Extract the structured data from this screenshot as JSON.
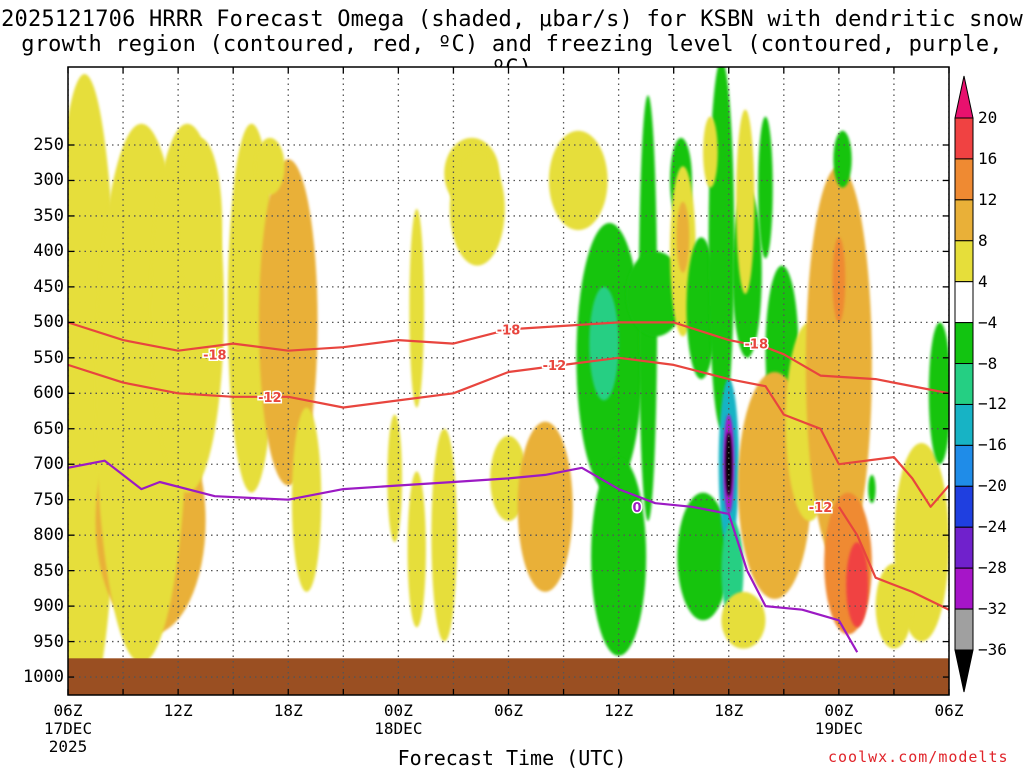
{
  "title_line1": "2025121706 HRRR Forecast Omega (shaded, μbar/s) for KSBN with dendritic snow",
  "title_line2": "growth region (contoured, red, ºC) and freezing level (contoured, purple, ºC)",
  "x_axis_label": "Forecast Time (UTC)",
  "credit": "coolwx.com/modelts",
  "chart_data": {
    "type": "heatmap",
    "x_ticks": [
      {
        "h": 0,
        "label": "06Z",
        "sub1": "17DEC",
        "sub2": "2025"
      },
      {
        "h": 6,
        "label": "12Z",
        "sub1": "",
        "sub2": ""
      },
      {
        "h": 12,
        "label": "18Z",
        "sub1": "",
        "sub2": ""
      },
      {
        "h": 18,
        "label": "00Z",
        "sub1": "18DEC",
        "sub2": ""
      },
      {
        "h": 24,
        "label": "06Z",
        "sub1": "",
        "sub2": ""
      },
      {
        "h": 30,
        "label": "12Z",
        "sub1": "",
        "sub2": ""
      },
      {
        "h": 36,
        "label": "18Z",
        "sub1": "",
        "sub2": ""
      },
      {
        "h": 42,
        "label": "00Z",
        "sub1": "19DEC",
        "sub2": ""
      },
      {
        "h": 48,
        "label": "06Z",
        "sub1": "",
        "sub2": ""
      }
    ],
    "y_ticks": [
      {
        "p": 250,
        "label": "250"
      },
      {
        "p": 300,
        "label": "300"
      },
      {
        "p": 350,
        "label": "350"
      },
      {
        "p": 400,
        "label": "400"
      },
      {
        "p": 450,
        "label": "450"
      },
      {
        "p": 500,
        "label": "500"
      },
      {
        "p": 550,
        "label": "550"
      },
      {
        "p": 600,
        "label": "600"
      },
      {
        "p": 650,
        "label": "650"
      },
      {
        "p": 700,
        "label": "700"
      },
      {
        "p": 750,
        "label": "750"
      },
      {
        "p": 800,
        "label": "800"
      },
      {
        "p": 850,
        "label": "850"
      },
      {
        "p": 900,
        "label": "900"
      },
      {
        "p": 950,
        "label": "950"
      },
      {
        "p": 1000,
        "label": "1000"
      }
    ],
    "x_range_hours": [
      0,
      48
    ],
    "y_range_hPa": [
      1050,
      200
    ],
    "colorbar": {
      "labels": [
        "20",
        "16",
        "12",
        "8",
        "4",
        "−4",
        "−8",
        "−12",
        "−16",
        "−20",
        "−24",
        "−28",
        "−32",
        "−36"
      ],
      "colors": [
        "#e8116e",
        "#f04242",
        "#ef8a32",
        "#e9b038",
        "#e6de3a",
        "#ffffff",
        "#12c411",
        "#25cf83",
        "#17b3c5",
        "#1f8ce8",
        "#1f3fe0",
        "#7021cc",
        "#a615c8",
        "#a0a0a0",
        "#000000"
      ]
    },
    "omega_features": [
      {
        "h": 0.7,
        "p": 700,
        "rh": 0.8,
        "rp": 270,
        "v": 14
      },
      {
        "h": 0.9,
        "p": 600,
        "rh": 1.8,
        "rp": 450,
        "v": 6
      },
      {
        "h": 4.5,
        "p": 780,
        "rh": 3.0,
        "rp": 160,
        "v": 8
      },
      {
        "h": 4.0,
        "p": 600,
        "rh": 2.5,
        "rp": 380,
        "v": 5
      },
      {
        "h": 6.5,
        "p": 480,
        "rh": 2.0,
        "rp": 260,
        "v": 5
      },
      {
        "h": 7.2,
        "p": 360,
        "rh": 1.2,
        "rp": 120,
        "v": 5
      },
      {
        "h": 10.0,
        "p": 480,
        "rh": 1.3,
        "rp": 260,
        "v": 5
      },
      {
        "h": 12.0,
        "p": 500,
        "rh": 1.6,
        "rp": 230,
        "v": 9
      },
      {
        "h": 11.0,
        "p": 280,
        "rh": 0.8,
        "rp": 40,
        "v": 5
      },
      {
        "h": 13.0,
        "p": 750,
        "rh": 0.8,
        "rp": 130,
        "v": 5
      },
      {
        "h": 17.8,
        "p": 720,
        "rh": 0.4,
        "rp": 90,
        "v": 5
      },
      {
        "h": 19.0,
        "p": 480,
        "rh": 0.4,
        "rp": 140,
        "v": 5
      },
      {
        "h": 19.0,
        "p": 820,
        "rh": 0.5,
        "rp": 110,
        "v": 5
      },
      {
        "h": 20.5,
        "p": 800,
        "rh": 0.7,
        "rp": 150,
        "v": 5
      },
      {
        "h": 22.0,
        "p": 290,
        "rh": 1.5,
        "rp": 50,
        "v": 5
      },
      {
        "h": 24.0,
        "p": 720,
        "rh": 1.0,
        "rp": 60,
        "v": 5
      },
      {
        "h": 26.0,
        "p": 760,
        "rh": 1.5,
        "rp": 120,
        "v": 10
      },
      {
        "h": 22.3,
        "p": 340,
        "rh": 1.5,
        "rp": 80,
        "v": 5
      },
      {
        "h": 27.8,
        "p": 300,
        "rh": 1.6,
        "rp": 70,
        "v": 5
      },
      {
        "h": 29.5,
        "p": 550,
        "rh": 1.8,
        "rp": 190,
        "v": -7
      },
      {
        "h": 29.2,
        "p": 530,
        "rh": 0.8,
        "rp": 80,
        "v": -11
      },
      {
        "h": 30.0,
        "p": 830,
        "rh": 1.5,
        "rp": 140,
        "v": -5
      },
      {
        "h": 31.6,
        "p": 480,
        "rh": 0.5,
        "rp": 300,
        "v": -6
      },
      {
        "h": 32.0,
        "p": 460,
        "rh": 1.6,
        "rp": 60,
        "v": -5
      },
      {
        "h": 33.4,
        "p": 300,
        "rh": 0.6,
        "rp": 60,
        "v": -5
      },
      {
        "h": 33.5,
        "p": 400,
        "rh": 0.7,
        "rp": 120,
        "v": 5
      },
      {
        "h": 33.5,
        "p": 380,
        "rh": 0.35,
        "rp": 50,
        "v": 10
      },
      {
        "h": 34.5,
        "p": 480,
        "rh": 0.8,
        "rp": 100,
        "v": -5
      },
      {
        "h": 35.6,
        "p": 390,
        "rh": 0.7,
        "rp": 260,
        "v": -7
      },
      {
        "h": 35.0,
        "p": 260,
        "rh": 0.4,
        "rp": 50,
        "v": 5
      },
      {
        "h": 34.6,
        "p": 830,
        "rh": 1.4,
        "rp": 90,
        "v": -6
      },
      {
        "h": 37.0,
        "p": 430,
        "rh": 0.8,
        "rp": 120,
        "v": -6
      },
      {
        "h": 36.9,
        "p": 330,
        "rh": 0.5,
        "rp": 130,
        "v": 5
      },
      {
        "h": 38.0,
        "p": 310,
        "rh": 0.4,
        "rp": 100,
        "v": -6
      },
      {
        "h": 38.9,
        "p": 540,
        "rh": 0.9,
        "rp": 120,
        "v": -6
      },
      {
        "h": 36.0,
        "p": 700,
        "rh": 0.55,
        "rp": 120,
        "v": -14
      },
      {
        "h": 36.0,
        "p": 700,
        "rh": 0.3,
        "rp": 70,
        "v": -30
      },
      {
        "h": 36.0,
        "p": 700,
        "rh": 0.18,
        "rp": 45,
        "v": -40
      },
      {
        "h": 36.2,
        "p": 850,
        "rh": 0.6,
        "rp": 70,
        "v": -8
      },
      {
        "h": 38.5,
        "p": 730,
        "rh": 2.0,
        "rp": 160,
        "v": 11
      },
      {
        "h": 36.8,
        "p": 920,
        "rh": 1.2,
        "rp": 40,
        "v": 5
      },
      {
        "h": 40.4,
        "p": 640,
        "rh": 1.3,
        "rp": 140,
        "v": 6
      },
      {
        "h": 42.0,
        "p": 560,
        "rh": 1.8,
        "rp": 280,
        "v": 8
      },
      {
        "h": 42.0,
        "p": 440,
        "rh": 0.35,
        "rp": 60,
        "v": 14
      },
      {
        "h": 42.2,
        "p": 270,
        "rh": 0.5,
        "rp": 40,
        "v": -6
      },
      {
        "h": 42.5,
        "p": 840,
        "rh": 1.3,
        "rp": 100,
        "v": 12
      },
      {
        "h": 43.0,
        "p": 870,
        "rh": 0.6,
        "rp": 60,
        "v": 17
      },
      {
        "h": 46.5,
        "p": 810,
        "rh": 1.5,
        "rp": 140,
        "v": 5
      },
      {
        "h": 47.5,
        "p": 600,
        "rh": 0.6,
        "rp": 100,
        "v": -6
      },
      {
        "h": 43.8,
        "p": 735,
        "rh": 0.2,
        "rp": 20,
        "v": -6
      },
      {
        "h": 45.0,
        "p": 900,
        "rh": 1.0,
        "rp": 60,
        "v": 5
      }
    ],
    "contours": [
      {
        "name": "dgz-minus18",
        "label": "-18",
        "color": "#e8453e",
        "points": [
          [
            0,
            500
          ],
          [
            3,
            525
          ],
          [
            6,
            540
          ],
          [
            9,
            530
          ],
          [
            12,
            540
          ],
          [
            15,
            535
          ],
          [
            18,
            525
          ],
          [
            21,
            530
          ],
          [
            24,
            510
          ],
          [
            27,
            505
          ],
          [
            30,
            500
          ],
          [
            33,
            500
          ],
          [
            36,
            525
          ],
          [
            38,
            535
          ],
          [
            39,
            545
          ],
          [
            41,
            575
          ],
          [
            44,
            580
          ],
          [
            48,
            600
          ]
        ],
        "label_pos": [
          [
            8,
            545
          ],
          [
            24,
            510
          ],
          [
            37.5,
            530
          ]
        ]
      },
      {
        "name": "dgz-minus12",
        "label": "-12",
        "color": "#e8453e",
        "points": [
          [
            0,
            560
          ],
          [
            3,
            585
          ],
          [
            6,
            600
          ],
          [
            9,
            605
          ],
          [
            12,
            605
          ],
          [
            15,
            620
          ],
          [
            18,
            610
          ],
          [
            21,
            600
          ],
          [
            24,
            570
          ],
          [
            27,
            560
          ],
          [
            30,
            550
          ],
          [
            33,
            560
          ],
          [
            36,
            580
          ],
          [
            38,
            590
          ],
          [
            39,
            630
          ],
          [
            41,
            650
          ],
          [
            42,
            700
          ],
          [
            45,
            690
          ],
          [
            46,
            720
          ],
          [
            47,
            760
          ],
          [
            48,
            730
          ]
        ],
        "label_pos": [
          [
            11,
            605
          ],
          [
            26.5,
            560
          ],
          [
            41,
            760
          ]
        ]
      },
      {
        "name": "dgz-lower-lobe",
        "label": "",
        "color": "#e8453e",
        "points": [
          [
            42,
            760
          ],
          [
            43,
            800
          ],
          [
            44,
            860
          ],
          [
            46,
            880
          ],
          [
            48,
            905
          ]
        ],
        "label_pos": []
      },
      {
        "name": "freezing-level",
        "label": "0",
        "color": "#9c1ac4",
        "points": [
          [
            0,
            705
          ],
          [
            2,
            695
          ],
          [
            4,
            735
          ],
          [
            5,
            725
          ],
          [
            8,
            745
          ],
          [
            12,
            750
          ],
          [
            15,
            735
          ],
          [
            18,
            730
          ],
          [
            21,
            725
          ],
          [
            24,
            720
          ],
          [
            26,
            715
          ],
          [
            28,
            705
          ],
          [
            30,
            735
          ],
          [
            32,
            755
          ],
          [
            34,
            760
          ],
          [
            36,
            770
          ],
          [
            37,
            850
          ],
          [
            38,
            900
          ],
          [
            40,
            905
          ],
          [
            42,
            920
          ],
          [
            43,
            965
          ]
        ],
        "label_pos": [
          [
            31,
            760
          ]
        ]
      }
    ],
    "ground_top_hPa": 975,
    "ground_color": "#9a4f22"
  }
}
